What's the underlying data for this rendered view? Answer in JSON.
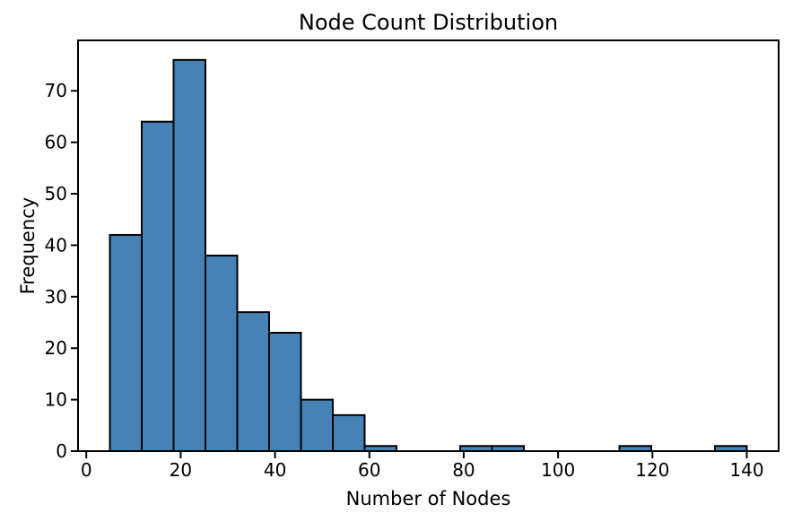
{
  "figure": {
    "background": "#ffffff"
  },
  "chart_data": {
    "type": "histogram",
    "title": "Node Count Distribution",
    "xlabel": "Number of Nodes",
    "ylabel": "Frequency",
    "bin_edges": [
      5.0,
      11.75,
      18.5,
      25.25,
      32.0,
      38.75,
      45.5,
      52.25,
      59.0,
      65.75,
      72.5,
      79.25,
      86.0,
      92.75,
      99.5,
      106.25,
      113.0,
      119.75,
      126.5,
      133.25,
      140.0
    ],
    "counts": [
      42,
      64,
      76,
      38,
      27,
      23,
      10,
      7,
      1,
      0,
      0,
      1,
      1,
      0,
      0,
      0,
      1,
      0,
      0,
      1
    ],
    "x_ticks": [
      0,
      20,
      40,
      60,
      80,
      100,
      120,
      140
    ],
    "y_ticks": [
      0,
      10,
      20,
      30,
      40,
      50,
      60,
      70
    ],
    "xlim": [
      -1.75,
      146.75
    ],
    "ylim": [
      0,
      79.8
    ],
    "bar_fill": "#4682b4",
    "bar_edge": "#000000",
    "axis_color": "#000000",
    "text_color": "#000000",
    "grid": false,
    "legend_position": "none"
  }
}
